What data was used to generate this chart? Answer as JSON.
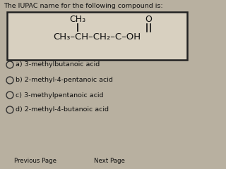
{
  "title": "The IUPAC name for the following compound is:",
  "bg_color": "#b8b0a0",
  "box_color": "#d8d0c0",
  "box_edge_color": "#222222",
  "text_color": "#111111",
  "ch3_branch": "CH₃",
  "o_label": "O",
  "main_chain": "CH₃–CH–CH₂–C–OH",
  "options": [
    "a) 3-methylbutanoic acid",
    "b) 2-methyl-4-pentanoic acid",
    "c) 3-methylpentanoic acid",
    "d) 2-methyl-4-butanoic acid"
  ],
  "nav_left": "Previous Page",
  "nav_right": "Next Page"
}
